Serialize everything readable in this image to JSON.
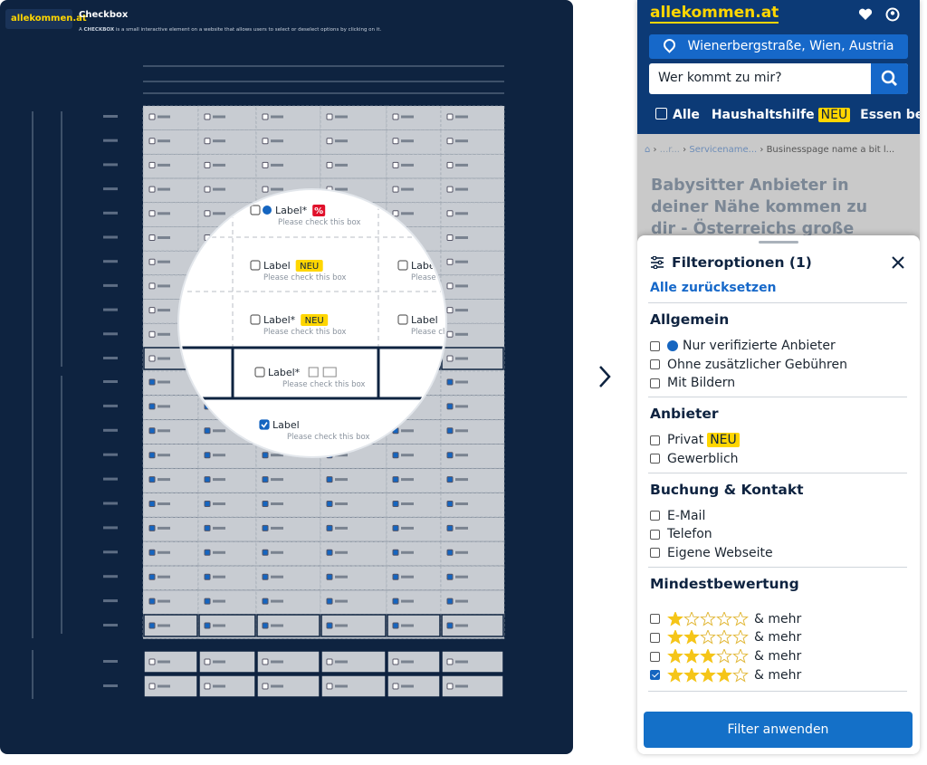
{
  "design_panel": {
    "logo": "allekommen.at",
    "title": "Checkbox",
    "description": [
      "A ",
      "CHECKBOX",
      " is a small interactive element on a website that allows users to select or deselect options by clicking on it."
    ],
    "magnifier": [
      {
        "label": "Label*",
        "badge": "%",
        "helper": "Please check this box",
        "checked": false
      },
      {
        "label": "Label",
        "badge": "NEU",
        "helper": "Please check this box",
        "checked": false
      },
      {
        "label": "Label",
        "helper": "Please check this box",
        "checked": false
      },
      {
        "label": "Label*",
        "badge": "NEU",
        "helper": "Please check this box",
        "checked": false
      },
      {
        "label": "Label",
        "helper": "Please check this box",
        "checked": false
      },
      {
        "label": "Label*",
        "helper": "Please check this box",
        "checked": false
      },
      {
        "label": "Label",
        "helper": "Please check this box",
        "checked": true
      }
    ]
  },
  "phone": {
    "logo": "allekommen.at",
    "location": "Wienerbergstraße, Wien, Austria",
    "search_placeholder": "Wer kommt zu mir?",
    "nav": [
      "Alle",
      "Haushaltshilfe",
      "NEU",
      "Essen best"
    ],
    "breadcrumb": [
      "...r...",
      "Servicename...",
      "Businesspage name a bit l..."
    ],
    "heading": "Babysitter Anbieter in deiner Nähe kommen zu dir - Österreichs große Auswahl",
    "filter": {
      "title": "Filteroptionen (1)",
      "reset": "Alle zurücksetzen",
      "sections": [
        {
          "title": "Allgemein",
          "items": [
            {
              "label": "Nur verifizierte Anbieter",
              "verified": true,
              "checked": false
            },
            {
              "label": "Ohne zusätzlicher Gebühren",
              "checked": false
            },
            {
              "label": "Mit Bildern",
              "checked": false
            }
          ]
        },
        {
          "title": "Anbieter",
          "items": [
            {
              "label": "Privat",
              "badge": "NEU",
              "checked": false
            },
            {
              "label": "Gewerblich",
              "checked": false
            }
          ]
        },
        {
          "title": "Buchung & Kontakt",
          "items": [
            {
              "label": "E-Mail",
              "checked": false
            },
            {
              "label": "Telefon",
              "checked": false
            },
            {
              "label": "Eigene Webseite",
              "checked": false
            }
          ]
        }
      ],
      "rating": {
        "title": "Mindestbewertung",
        "max_stars": 5,
        "items": [
          {
            "stars": 1,
            "label": "& mehr",
            "checked": false
          },
          {
            "stars": 2,
            "label": "& mehr",
            "checked": false
          },
          {
            "stars": 3,
            "label": "& mehr",
            "checked": false
          },
          {
            "stars": 4,
            "label": "& mehr",
            "checked": true
          }
        ]
      },
      "apply": "Filter anwenden"
    }
  }
}
